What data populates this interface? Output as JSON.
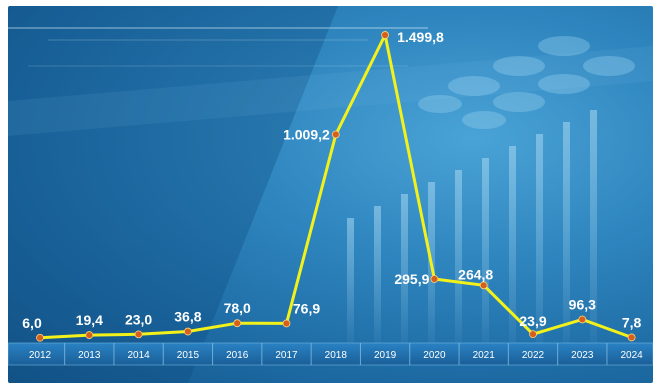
{
  "chart_data": {
    "type": "line",
    "title": "",
    "xlabel": "",
    "ylabel": "",
    "categories": [
      "2012",
      "2013",
      "2014",
      "2015",
      "2016",
      "2017",
      "2018",
      "2019",
      "2020",
      "2021",
      "2022",
      "2023",
      "2024"
    ],
    "values": [
      6.0,
      19.4,
      23.0,
      36.8,
      78.0,
      76.9,
      1009.2,
      1499.8,
      295.9,
      264.8,
      23.9,
      96.3,
      7.8
    ],
    "value_labels": [
      "6,0",
      "19,4",
      "23,0",
      "36,8",
      "78,0",
      "76,9",
      "1.009,2",
      "1.499,8",
      "295,9",
      "264,8",
      "23,9",
      "96,3",
      "7,8"
    ],
    "ylim": [
      0,
      1500
    ],
    "grid": false,
    "legend": "none",
    "colors": {
      "line": "#f2f21a",
      "marker": "#d4601c",
      "axis_band": "#1c6aa8",
      "label": "#ffffff"
    }
  }
}
